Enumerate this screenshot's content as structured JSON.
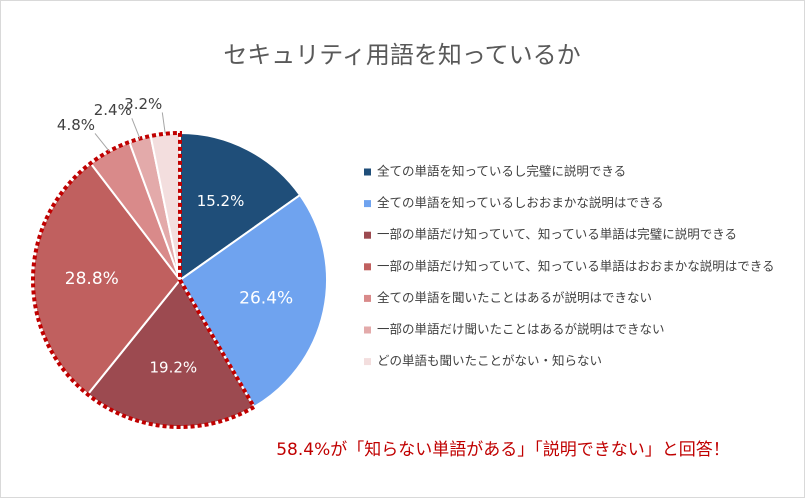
{
  "chart_data": {
    "type": "pie",
    "title": "セキュリティ用語を知っているか",
    "categories": [
      "全ての単語を知っているし完璧に説明できる",
      "全ての単語を知っているしおおまかな説明はできる",
      "一部の単語だけ知っていて、知っている単語は完璧に説明できる",
      "一部の単語だけ知っていて、知っている単語はおおまかな説明はできる",
      "全ての単語を聞いたことはあるが説明はできない",
      "一部の単語だけ聞いたことはあるが説明はできない",
      "どの単語も聞いたことがない・知らない"
    ],
    "values": [
      15.2,
      26.4,
      19.2,
      28.8,
      4.8,
      2.4,
      3.2
    ],
    "value_labels": [
      "15.2%",
      "26.4%",
      "19.2%",
      "28.8%",
      "4.8%",
      "2.4%",
      "3.2%"
    ],
    "colors": [
      "#1f4e79",
      "#6fa3ef",
      "#9c4a50",
      "#c0605f",
      "#d98a8a",
      "#e3aaaa",
      "#f3dede"
    ],
    "annotation": "58.4%が「知らない単語がある」「説明できない」と回答！",
    "legend": "right"
  }
}
